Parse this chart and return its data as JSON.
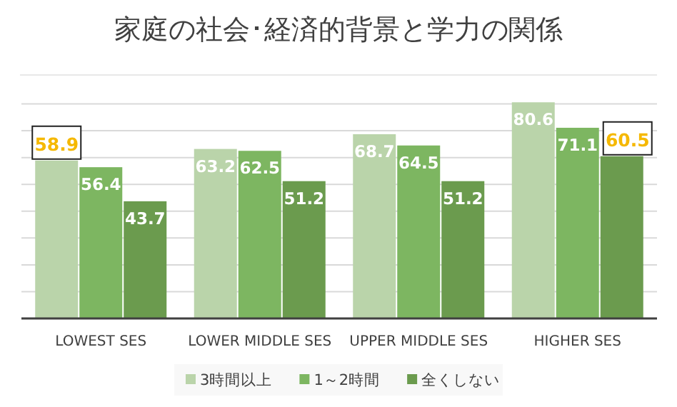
{
  "chart_data": {
    "type": "bar",
    "title": "家庭の社会･経済的背景と学力の関係",
    "categories": [
      "LOWEST SES",
      "LOWER MIDDLE SES",
      "UPPER MIDDLE SES",
      "HIGHER SES"
    ],
    "series": [
      {
        "name": "3時間以上",
        "color": "#bad4aa",
        "values": [
          58.9,
          63.2,
          68.7,
          80.6
        ],
        "value_labels": [
          null,
          "63.2",
          "68.7",
          "80.6"
        ]
      },
      {
        "name": "1～2時間",
        "color": "#7db661",
        "values": [
          56.4,
          62.5,
          64.5,
          71.1
        ],
        "value_labels": [
          "56.4",
          "62.5",
          "64.5",
          "71.1"
        ]
      },
      {
        "name": "全くしない",
        "color": "#6b9b4e",
        "values": [
          43.7,
          51.2,
          51.2,
          60.5
        ],
        "value_labels": [
          "43.7",
          "51.2",
          "51.2",
          null
        ]
      }
    ],
    "annotations": [
      "58.9",
      "60.5"
    ],
    "ylim": [
      0,
      82
    ],
    "yticks": [
      {
        "value": 10,
        "label": null
      },
      {
        "value": 20,
        "label": null
      },
      {
        "value": 30,
        "label": null
      },
      {
        "value": 40,
        "label": null
      },
      {
        "value": 50,
        "label": null
      },
      {
        "value": 60,
        "label": null
      },
      {
        "value": 70,
        "label": null
      },
      {
        "value": 80,
        "label": null
      }
    ],
    "tick_labels": "x",
    "grid": "y",
    "legend": "bottom"
  }
}
